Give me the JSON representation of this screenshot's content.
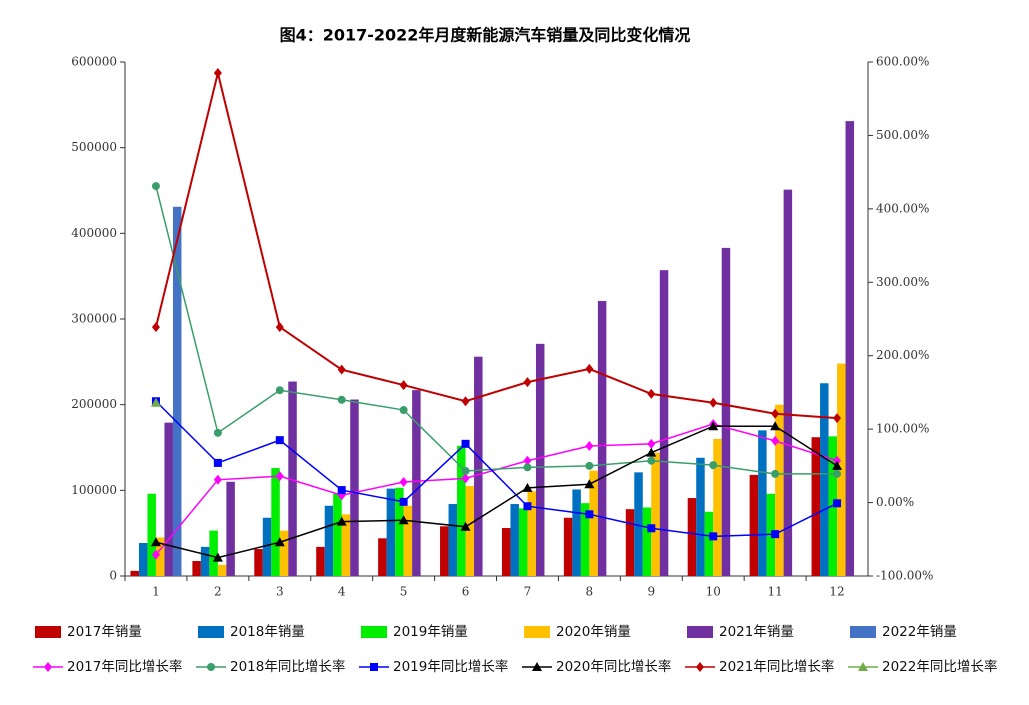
{
  "chart_data": {
    "type": "combo",
    "title": "图4：2017-2022年月度新能源汽车销量及同比变化情况",
    "categories": [
      "1",
      "2",
      "3",
      "4",
      "5",
      "6",
      "7",
      "8",
      "9",
      "10",
      "11",
      "12"
    ],
    "ylim": [
      0,
      600000
    ],
    "yticks": [
      0,
      100000,
      200000,
      300000,
      400000,
      500000,
      600000
    ],
    "y2lim": [
      -100,
      600
    ],
    "y2ticks": [
      {
        "value": -100,
        "label": "-100.00%"
      },
      {
        "value": 0,
        "label": "0.00%"
      },
      {
        "value": 100,
        "label": "100.00%"
      },
      {
        "value": 200,
        "label": "200.00%"
      },
      {
        "value": 300,
        "label": "300.00%"
      },
      {
        "value": 400,
        "label": "400.00%"
      },
      {
        "value": 500,
        "label": "500.00%"
      },
      {
        "value": 600,
        "label": "600.00%"
      }
    ],
    "series": [
      {
        "name": "2017年销量",
        "type": "bar",
        "color": "#c00000",
        "values": [
          6000,
          17500,
          31500,
          34000,
          44000,
          58000,
          56000,
          68000,
          78000,
          91000,
          118000,
          162000
        ]
      },
      {
        "name": "2018年销量",
        "type": "bar",
        "color": "#0070c0",
        "values": [
          38500,
          34000,
          68000,
          82000,
          102000,
          84000,
          84000,
          101000,
          121000,
          138000,
          170000,
          225000
        ]
      },
      {
        "name": "2019年销量",
        "type": "bar",
        "color": "#00ee00",
        "values": [
          96000,
          53000,
          126000,
          96000,
          103000,
          152000,
          79000,
          85000,
          80000,
          75000,
          96000,
          163000
        ]
      },
      {
        "name": "2020年销量",
        "type": "bar",
        "color": "#ffc000",
        "values": [
          45000,
          13000,
          53000,
          72000,
          82000,
          105000,
          99000,
          123000,
          144000,
          160000,
          200000,
          248000
        ]
      },
      {
        "name": "2021年销量",
        "type": "bar",
        "color": "#7030a0",
        "values": [
          179000,
          110000,
          227000,
          206000,
          217000,
          256000,
          271000,
          321000,
          357000,
          383000,
          451000,
          531000
        ]
      },
      {
        "name": "2022年销量",
        "type": "bar",
        "color": "#4472c4",
        "values": [
          431000,
          null,
          null,
          null,
          null,
          null,
          null,
          null,
          null,
          null,
          null,
          null
        ]
      },
      {
        "name": "2017年同比增长率",
        "type": "line",
        "axis": "y2",
        "color": "#ff00ff",
        "marker": "diamond",
        "values": [
          -71,
          31,
          36,
          10,
          28,
          33,
          57,
          77,
          80,
          107,
          84,
          57
        ]
      },
      {
        "name": "2018年同比增长率",
        "type": "line",
        "axis": "y2",
        "color": "#3a9e6b",
        "marker": "circle",
        "values": [
          431,
          95,
          153,
          140,
          126,
          43,
          48,
          50,
          57,
          51,
          39,
          39
        ]
      },
      {
        "name": "2019年同比增长率",
        "type": "line",
        "axis": "y2",
        "color": "#0000ff",
        "marker": "square",
        "values": [
          138,
          54,
          85,
          17,
          1,
          80,
          -5,
          -16,
          -35,
          -46,
          -43,
          -1
        ]
      },
      {
        "name": "2020年同比增长率",
        "type": "line",
        "axis": "y2",
        "color": "#000000",
        "marker": "triangle",
        "values": [
          -54,
          -75,
          -54,
          -26,
          -24,
          -33,
          20,
          25,
          68,
          104,
          104,
          50
        ]
      },
      {
        "name": "2021年同比增长率",
        "type": "line",
        "axis": "y2",
        "color": "#c00000",
        "marker": "diamond",
        "values": [
          239,
          585,
          239,
          181,
          160,
          138,
          164,
          182,
          148,
          136,
          121,
          115
        ]
      },
      {
        "name": "2022年同比增长率",
        "type": "line",
        "axis": "y2",
        "color": "#70ad47",
        "marker": "triangle",
        "values": [
          136,
          null,
          null,
          null,
          null,
          null,
          null,
          null,
          null,
          null,
          null,
          null
        ]
      }
    ]
  }
}
